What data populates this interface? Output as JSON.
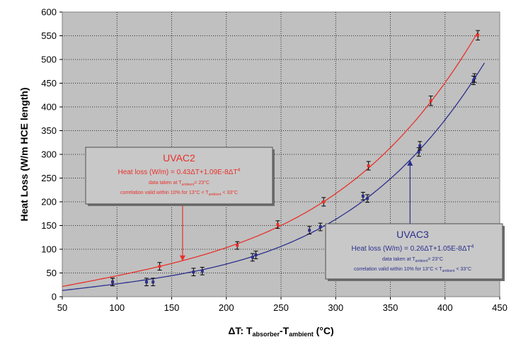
{
  "chart_data": {
    "type": "scatter",
    "xlabel": {
      "main": "ΔT: T",
      "sub1": "absorber",
      "mid": "-T",
      "sub2": "ambient",
      "tail": " (°C)"
    },
    "ylabel": "Heat Loss (W/m HCE length)",
    "xlim": [
      50,
      450
    ],
    "ylim": [
      0,
      600
    ],
    "xticks": [
      50,
      100,
      150,
      200,
      250,
      300,
      350,
      400,
      450
    ],
    "yticks": [
      0,
      50,
      100,
      150,
      200,
      250,
      300,
      350,
      400,
      450,
      500,
      550,
      600
    ],
    "grid": true,
    "series": [
      {
        "name": "UVAC2",
        "color": "#e8312a",
        "fit": {
          "a": 0.43,
          "b": 1.09e-08,
          "x_range": [
            50,
            430
          ]
        },
        "points": [
          {
            "x": 96,
            "y": 31,
            "err": 8
          },
          {
            "x": 139,
            "y": 64,
            "err": 8
          },
          {
            "x": 210,
            "y": 108,
            "err": 8
          },
          {
            "x": 247,
            "y": 152,
            "err": 8
          },
          {
            "x": 289,
            "y": 200,
            "err": 9
          },
          {
            "x": 330,
            "y": 276,
            "err": 9
          },
          {
            "x": 387,
            "y": 413,
            "err": 10
          },
          {
            "x": 430,
            "y": 551,
            "err": 10
          }
        ]
      },
      {
        "name": "UVAC3",
        "color": "#2c2f8c",
        "fit": {
          "a": 0.26,
          "b": 1.05e-08,
          "x_range": [
            50,
            437
          ]
        },
        "points": [
          {
            "x": 96,
            "y": 31,
            "err": 8
          },
          {
            "x": 127,
            "y": 31,
            "err": 8
          },
          {
            "x": 133,
            "y": 31,
            "err": 8
          },
          {
            "x": 170,
            "y": 52,
            "err": 8
          },
          {
            "x": 178,
            "y": 54,
            "err": 8
          },
          {
            "x": 224,
            "y": 83,
            "err": 8
          },
          {
            "x": 227,
            "y": 88,
            "err": 8
          },
          {
            "x": 276,
            "y": 140,
            "err": 8
          },
          {
            "x": 286,
            "y": 147,
            "err": 8
          },
          {
            "x": 325,
            "y": 212,
            "err": 8
          },
          {
            "x": 329,
            "y": 207,
            "err": 8
          },
          {
            "x": 376,
            "y": 305,
            "err": 9
          },
          {
            "x": 377,
            "y": 318,
            "err": 9
          },
          {
            "x": 426,
            "y": 456,
            "err": 9
          },
          {
            "x": 427,
            "y": 461,
            "err": 9
          }
        ]
      }
    ],
    "annotations": [
      {
        "series": "UVAC2",
        "color": "#e8312a",
        "title": "UVAC2",
        "equation": "Heat loss (W/m) = 0.43ΔT+1.09E-8ΔT",
        "eq_exp": "4",
        "note1": {
          "pre": "data taken at T",
          "sub": "ambient",
          "post": "= 23°C"
        },
        "note2": {
          "pre": "correlation valid within 10% for 13°C < T",
          "sub": "ambient",
          "post": " < 33°C"
        },
        "arrow_to": {
          "x": 160,
          "y": 75
        }
      },
      {
        "series": "UVAC3",
        "color": "#2c2f8c",
        "title": "UVAC3",
        "equation": "Heat loss (W/m) = 0.26ΔT+1.05E-8ΔT",
        "eq_exp": "4",
        "note1": {
          "pre": "data taken at T",
          "sub": "ambient",
          "post": "= 23°C"
        },
        "note2": {
          "pre": "correlation valid within 10% for 13°C < T",
          "sub": "ambient",
          "post": " < 33°C"
        },
        "arrow_to": {
          "x": 368,
          "y": 288
        }
      }
    ]
  }
}
